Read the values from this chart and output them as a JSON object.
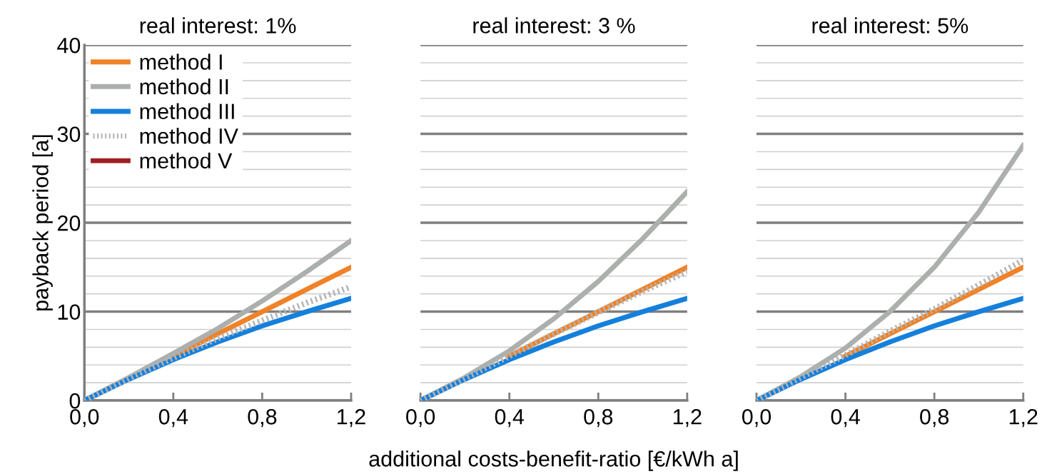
{
  "chart_data": [
    {
      "type": "line",
      "title": "real interest: 1%",
      "ylabel": "payback period [a]",
      "x": [
        0,
        0.2,
        0.4,
        0.6,
        0.8,
        1.0,
        1.2
      ],
      "xlim": [
        0,
        1.2
      ],
      "xticks": [
        {
          "value": 0,
          "label": "0,0"
        },
        {
          "value": 0.4,
          "label": "0,4"
        },
        {
          "value": 0.8,
          "label": "0,8"
        },
        {
          "value": 1.2,
          "label": "1,2"
        }
      ],
      "ylim": [
        0,
        40
      ],
      "yticks": [
        0,
        {
          "value": 2,
          "label": null
        },
        {
          "value": 4,
          "label": null
        },
        {
          "value": 6,
          "label": null
        },
        {
          "value": 8,
          "label": null
        },
        10,
        {
          "value": 12,
          "label": null
        },
        {
          "value": 14,
          "label": null
        },
        {
          "value": 16,
          "label": null
        },
        {
          "value": 18,
          "label": null
        },
        20,
        {
          "value": 22,
          "label": null
        },
        {
          "value": 24,
          "label": null
        },
        {
          "value": 26,
          "label": null
        },
        {
          "value": 28,
          "label": null
        },
        30,
        {
          "value": 32,
          "label": null
        },
        {
          "value": 34,
          "label": null
        },
        {
          "value": 36,
          "label": null
        },
        {
          "value": 38,
          "label": null
        },
        40
      ],
      "grid": "y",
      "legend": "top left",
      "series": [
        {
          "name": "method I",
          "color": "#f08228",
          "values": [
            null,
            null,
            5,
            7.5,
            10,
            12.5,
            15
          ]
        },
        {
          "name": "method II",
          "color": "#abb0ad",
          "values": [
            0,
            2.6,
            5.3,
            8.1,
            11.2,
            14.5,
            18.0
          ]
        },
        {
          "name": "method III",
          "color": "#1580dc",
          "values": [
            0,
            2.4,
            4.6,
            6.6,
            8.4,
            10.0,
            11.5
          ]
        },
        {
          "name": "method IV",
          "color": "#b4b4b4",
          "line_style": "dotted",
          "values": [
            0,
            2.5,
            4.8,
            7.0,
            9.0,
            11.0,
            12.8
          ]
        },
        {
          "name": "method V",
          "color": "#a01e23",
          "values": [
            null,
            null,
            null,
            null,
            null,
            null,
            null
          ]
        }
      ]
    },
    {
      "type": "line",
      "title": "real interest: 3 %",
      "xlabel": "additional costs-benefit-ratio [€/kWh a]",
      "x": [
        0,
        0.2,
        0.4,
        0.6,
        0.8,
        1.0,
        1.2
      ],
      "xlim": [
        0,
        1.2
      ],
      "xticks": [
        {
          "value": 0,
          "label": "0,0"
        },
        {
          "value": 0.4,
          "label": "0,4"
        },
        {
          "value": 0.8,
          "label": "0,8"
        },
        {
          "value": 1.2,
          "label": "1,2"
        }
      ],
      "ylim": [
        0,
        40
      ],
      "yticks": [
        0,
        {
          "value": 2,
          "label": null
        },
        {
          "value": 4,
          "label": null
        },
        {
          "value": 6,
          "label": null
        },
        {
          "value": 8,
          "label": null
        },
        10,
        {
          "value": 12,
          "label": null
        },
        {
          "value": 14,
          "label": null
        },
        {
          "value": 16,
          "label": null
        },
        {
          "value": 18,
          "label": null
        },
        20,
        {
          "value": 22,
          "label": null
        },
        {
          "value": 24,
          "label": null
        },
        {
          "value": 26,
          "label": null
        },
        {
          "value": 28,
          "label": null
        },
        30,
        {
          "value": 32,
          "label": null
        },
        {
          "value": 34,
          "label": null
        },
        {
          "value": 36,
          "label": null
        },
        {
          "value": 38,
          "label": null
        },
        40
      ],
      "grid": "y",
      "tick_labels": "x",
      "series": [
        {
          "color": "#f08228",
          "values": [
            null,
            null,
            5,
            7.5,
            10,
            12.5,
            15
          ]
        },
        {
          "color": "#abb0ad",
          "values": [
            0,
            2.6,
            5.6,
            9.2,
            13.4,
            18.2,
            23.5
          ]
        },
        {
          "color": "#1580dc",
          "values": [
            0,
            2.4,
            4.6,
            6.6,
            8.4,
            10.0,
            11.5
          ]
        },
        {
          "color": "#b4b4b4",
          "line_style": "dotted",
          "values": [
            0,
            2.5,
            5,
            7.5,
            9.9,
            12.3,
            14.5
          ]
        },
        {
          "color": "#a01e23",
          "values": [
            null,
            null,
            null,
            null,
            null,
            null,
            null
          ]
        }
      ]
    },
    {
      "type": "line",
      "title": "real interest: 5%",
      "x": [
        0,
        0.2,
        0.4,
        0.6,
        0.8,
        1.0,
        1.2
      ],
      "xlim": [
        0,
        1.2
      ],
      "xticks": [
        {
          "value": 0,
          "label": "0,0"
        },
        {
          "value": 0.4,
          "label": "0,4"
        },
        {
          "value": 0.8,
          "label": "0,8"
        },
        {
          "value": 1.2,
          "label": "1,2"
        }
      ],
      "ylim": [
        0,
        40
      ],
      "yticks": [
        0,
        {
          "value": 2,
          "label": null
        },
        {
          "value": 4,
          "label": null
        },
        {
          "value": 6,
          "label": null
        },
        {
          "value": 8,
          "label": null
        },
        10,
        {
          "value": 12,
          "label": null
        },
        {
          "value": 14,
          "label": null
        },
        {
          "value": 16,
          "label": null
        },
        {
          "value": 18,
          "label": null
        },
        20,
        {
          "value": 22,
          "label": null
        },
        {
          "value": 24,
          "label": null
        },
        {
          "value": 26,
          "label": null
        },
        {
          "value": 28,
          "label": null
        },
        30,
        {
          "value": 32,
          "label": null
        },
        {
          "value": 34,
          "label": null
        },
        {
          "value": 36,
          "label": null
        },
        {
          "value": 38,
          "label": null
        },
        40
      ],
      "grid": "y",
      "tick_labels": "x",
      "series": [
        {
          "color": "#f08228",
          "values": [
            null,
            null,
            5,
            7.5,
            10,
            12.5,
            15
          ]
        },
        {
          "color": "#abb0ad",
          "values": [
            0,
            2.7,
            5.9,
            10.0,
            15.0,
            21.2,
            28.7
          ]
        },
        {
          "color": "#1580dc",
          "values": [
            0,
            2.4,
            4.6,
            6.6,
            8.4,
            10.0,
            11.5
          ]
        },
        {
          "color": "#b4b4b4",
          "line_style": "dotted",
          "values": [
            0,
            2.6,
            5.1,
            7.8,
            10.3,
            13.0,
            15.8
          ]
        },
        {
          "color": "#a01e23",
          "values": [
            null,
            null,
            null,
            null,
            null,
            null,
            null
          ]
        }
      ]
    }
  ]
}
